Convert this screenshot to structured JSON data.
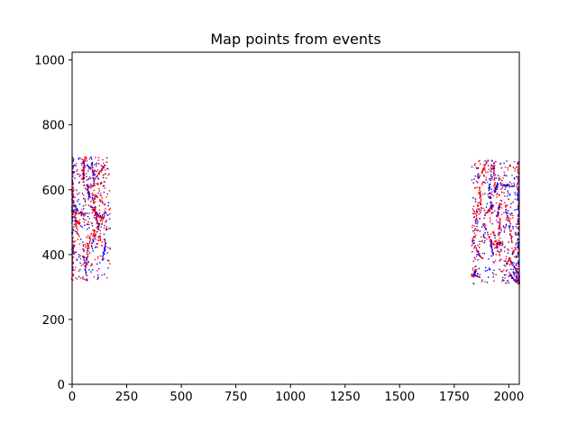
{
  "chart_data": {
    "type": "scatter",
    "title": "Map points from events",
    "xlabel": "",
    "ylabel": "",
    "xlim": [
      0,
      2048
    ],
    "ylim": [
      0,
      1024
    ],
    "x_ticks": [
      0,
      250,
      500,
      750,
      1000,
      1250,
      1500,
      1750,
      2000
    ],
    "x_tick_labels": [
      "0",
      "250",
      "500",
      "750",
      "1000",
      "1250",
      "1500",
      "1750",
      "2000"
    ],
    "y_ticks": [
      0,
      200,
      400,
      600,
      800,
      1000
    ],
    "y_tick_labels": [
      "0",
      "200",
      "400",
      "600",
      "800",
      "1000"
    ],
    "grid": false,
    "colors": {
      "positive_events": "#ff0000",
      "negative_events": "#0000ff"
    },
    "clusters": [
      {
        "region": "left",
        "x_range": [
          0,
          175
        ],
        "y_range": [
          320,
          700
        ],
        "approx_points": 900
      },
      {
        "region": "right",
        "x_range": [
          1830,
          2048
        ],
        "y_range": [
          310,
          690
        ],
        "approx_points": 1100
      }
    ]
  }
}
